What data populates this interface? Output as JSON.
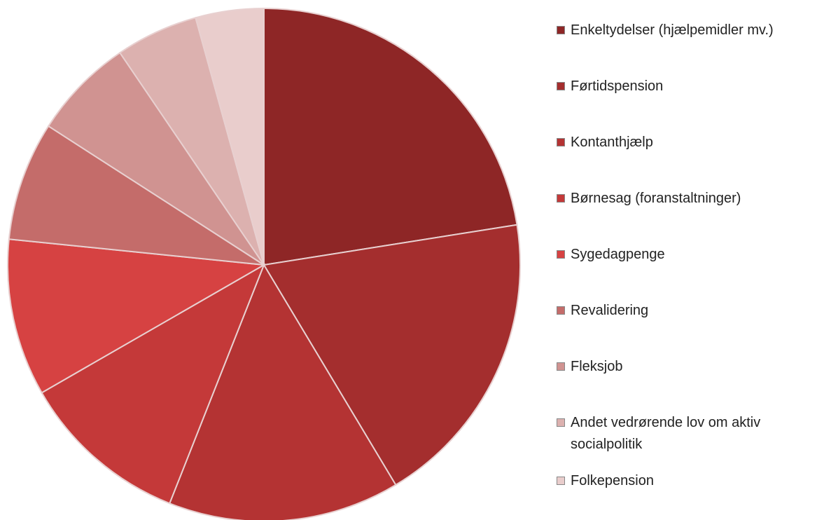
{
  "chart_data": {
    "type": "pie",
    "categories": [
      "Enkeltydelser (hjælpemidler mv.)",
      "Førtidspension",
      "Kontanthjælp",
      "Børnesag (foranstaltninger)",
      "Sygedagpenge",
      "Revalidering",
      "Fleksjob",
      "Andet vedrørende lov om aktiv socialpolitik",
      "Folkepension"
    ],
    "values": [
      22.5,
      18.9,
      14.6,
      10.7,
      9.9,
      7.5,
      6.4,
      5.2,
      4.3
    ],
    "colors": [
      "#8e2626",
      "#a42e2e",
      "#b43333",
      "#c43939",
      "#d64242",
      "#c46c6a",
      "#d09391",
      "#dcb1af",
      "#e9cdcc"
    ],
    "legend": "right"
  }
}
